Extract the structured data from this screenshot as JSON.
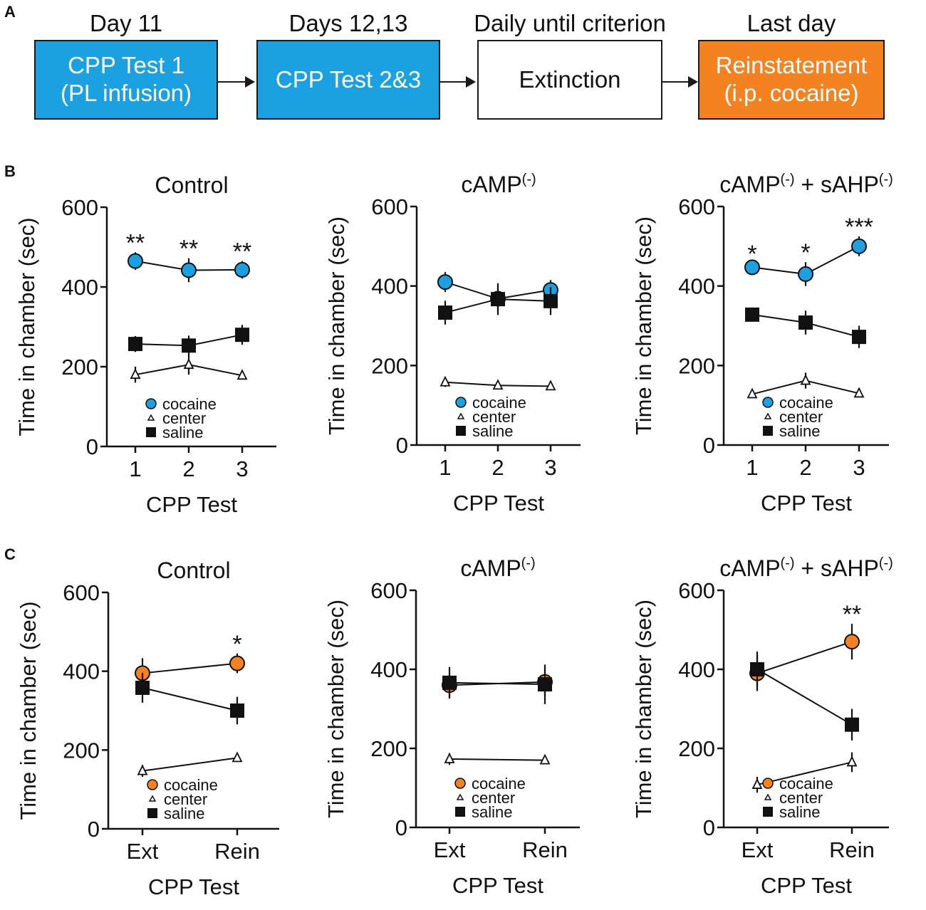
{
  "panel_letters": {
    "a": "A",
    "b": "B",
    "c": "C"
  },
  "flow": {
    "steps": [
      {
        "label": "Day 11",
        "lines": [
          "CPP Test 1",
          "(PL infusion)"
        ],
        "fill": "#1ba1e2"
      },
      {
        "label": "Days 12,13",
        "lines": [
          "CPP Test 2&3"
        ],
        "fill": "#1ba1e2"
      },
      {
        "label": "Daily until criterion",
        "lines": [
          "Extinction"
        ],
        "fill": "#ffffff"
      },
      {
        "label": "Last day",
        "lines": [
          "Reinstatement",
          "(i.p. cocaine)"
        ],
        "fill": "#f58220"
      }
    ]
  },
  "colors": {
    "cocaine_b": "#1ba1e2",
    "cocaine_c": "#f58220",
    "saline": "#111111",
    "center": "#ffffff",
    "axis": "#111111"
  },
  "chart_data": [
    {
      "id": "B1",
      "type": "line",
      "title": "Control",
      "xlabel": "CPP Test",
      "ylabel": "Time in chamber (sec)",
      "categories": [
        "1",
        "2",
        "3"
      ],
      "ylim": [
        0,
        600
      ],
      "yticks": [
        0,
        200,
        400,
        600
      ],
      "series": [
        {
          "name": "cocaine",
          "marker": "circle",
          "values": [
            465,
            442,
            443
          ],
          "errors": [
            22,
            30,
            22
          ]
        },
        {
          "name": "center",
          "marker": "triangle",
          "values": [
            180,
            205,
            178
          ],
          "errors": [
            20,
            25,
            8
          ]
        },
        {
          "name": "saline",
          "marker": "square",
          "values": [
            257,
            253,
            280
          ],
          "errors": [
            20,
            25,
            25
          ]
        }
      ],
      "significance": [
        "**",
        "**",
        "**"
      ]
    },
    {
      "id": "B2",
      "type": "line",
      "title": "cAMP",
      "title_sup": "(-)",
      "xlabel": "CPP Test",
      "ylabel": "Time in chamber (sec)",
      "categories": [
        "1",
        "2",
        "3"
      ],
      "ylim": [
        0,
        600
      ],
      "yticks": [
        0,
        200,
        400,
        600
      ],
      "series": [
        {
          "name": "cocaine",
          "marker": "circle",
          "values": [
            410,
            368,
            390
          ],
          "errors": [
            25,
            30,
            25
          ]
        },
        {
          "name": "center",
          "marker": "triangle",
          "values": [
            158,
            150,
            148
          ],
          "errors": [
            12,
            8,
            8
          ]
        },
        {
          "name": "saline",
          "marker": "square",
          "values": [
            333,
            367,
            362
          ],
          "errors": [
            30,
            40,
            35
          ]
        }
      ],
      "significance": [
        "",
        "",
        ""
      ]
    },
    {
      "id": "B3",
      "type": "line",
      "title": "cAMP",
      "title_sup": "(-)",
      "title_mid": " + sAHP",
      "title_sup2": "(-)",
      "xlabel": "CPP Test",
      "ylabel": "Time in chamber (sec)",
      "categories": [
        "1",
        "2",
        "3"
      ],
      "ylim": [
        0,
        600
      ],
      "yticks": [
        0,
        200,
        400,
        600
      ],
      "series": [
        {
          "name": "cocaine",
          "marker": "circle",
          "values": [
            447,
            430,
            500
          ],
          "errors": [
            10,
            30,
            25
          ]
        },
        {
          "name": "center",
          "marker": "triangle",
          "values": [
            128,
            162,
            130
          ],
          "errors": [
            10,
            20,
            8
          ]
        },
        {
          "name": "saline",
          "marker": "square",
          "values": [
            328,
            308,
            272
          ],
          "errors": [
            15,
            30,
            28
          ]
        }
      ],
      "significance": [
        "*",
        "*",
        "***"
      ]
    },
    {
      "id": "C1",
      "type": "line",
      "title": "Control",
      "xlabel": "CPP Test",
      "ylabel": "Time in chamber (sec)",
      "categories": [
        "Ext",
        "Rein"
      ],
      "ylim": [
        0,
        600
      ],
      "yticks": [
        0,
        200,
        400,
        600
      ],
      "series": [
        {
          "name": "cocaine",
          "marker": "circle",
          "values": [
            395,
            420
          ],
          "errors": [
            38,
            25
          ]
        },
        {
          "name": "center",
          "marker": "triangle",
          "values": [
            147,
            180
          ],
          "errors": [
            15,
            8
          ]
        },
        {
          "name": "saline",
          "marker": "square",
          "values": [
            358,
            300
          ],
          "errors": [
            38,
            35
          ]
        }
      ],
      "significance": [
        "",
        "*"
      ]
    },
    {
      "id": "C2",
      "type": "line",
      "title": "cAMP",
      "title_sup": "(-)",
      "xlabel": "CPP Test",
      "ylabel": "Time in chamber (sec)",
      "categories": [
        "Ext",
        "Rein"
      ],
      "ylim": [
        0,
        600
      ],
      "yticks": [
        0,
        200,
        400,
        600
      ],
      "series": [
        {
          "name": "cocaine",
          "marker": "circle",
          "values": [
            360,
            368
          ],
          "errors": [
            30,
            35
          ]
        },
        {
          "name": "center",
          "marker": "triangle",
          "values": [
            173,
            170
          ],
          "errors": [
            15,
            8
          ]
        },
        {
          "name": "saline",
          "marker": "square",
          "values": [
            366,
            362
          ],
          "errors": [
            40,
            50
          ]
        }
      ],
      "significance": [
        "",
        ""
      ]
    },
    {
      "id": "C3",
      "type": "line",
      "title": "cAMP",
      "title_sup": "(-)",
      "title_mid": " + sAHP",
      "title_sup2": "(-)",
      "xlabel": "CPP Test",
      "ylabel": "Time in chamber (sec)",
      "categories": [
        "Ext",
        "Rein"
      ],
      "ylim": [
        0,
        600
      ],
      "yticks": [
        0,
        200,
        400,
        600
      ],
      "series": [
        {
          "name": "cocaine",
          "marker": "circle",
          "values": [
            390,
            470
          ],
          "errors": [
            45,
            45
          ]
        },
        {
          "name": "center",
          "marker": "triangle",
          "values": [
            108,
            165
          ],
          "errors": [
            20,
            25
          ]
        },
        {
          "name": "saline",
          "marker": "square",
          "values": [
            400,
            260
          ],
          "errors": [
            45,
            40
          ]
        }
      ],
      "significance": [
        "",
        "**"
      ]
    }
  ]
}
